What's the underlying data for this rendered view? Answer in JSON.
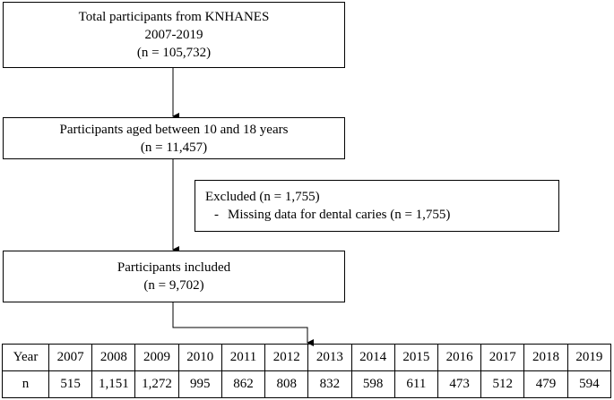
{
  "flow": {
    "total": {
      "line1": "Total participants from KNHANES",
      "line2": "2007-2019",
      "line3": "(n = 105,732)"
    },
    "aged": {
      "line1": "Participants aged between 10 and 18 years",
      "line2": "(n = 11,457)"
    },
    "excluded": {
      "line1": "Excluded (n = 1,755)",
      "bullet": "-",
      "line2": "Missing data for dental caries (n = 1,755)"
    },
    "included": {
      "line1": "Participants included",
      "line2": "(n = 9,702)"
    }
  },
  "table": {
    "rows": [
      [
        "Year",
        "2007",
        "2008",
        "2009",
        "2010",
        "2011",
        "2012",
        "2013",
        "2014",
        "2015",
        "2016",
        "2017",
        "2018",
        "2019"
      ],
      [
        "n",
        "515",
        "1,151",
        "1,272",
        "995",
        "862",
        "808",
        "832",
        "598",
        "611",
        "473",
        "512",
        "479",
        "594"
      ]
    ]
  }
}
